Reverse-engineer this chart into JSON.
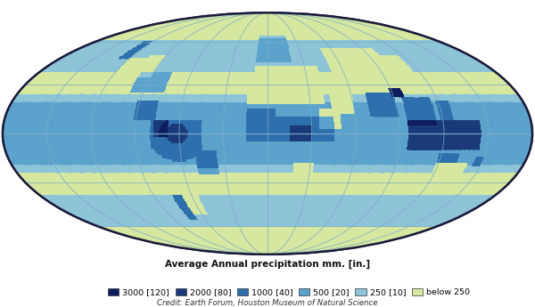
{
  "title": "Average Annual precipitation mm. [in.]",
  "credit": "Credit: Earth Forum, Houston Museum of Natural Science",
  "legend_entries": [
    {
      "label": "3000 [120]",
      "color": "#0d1d5e"
    },
    {
      "label": "2000 [80]",
      "color": "#1a3a7a"
    },
    {
      "label": "1000 [40]",
      "color": "#2e6fad"
    },
    {
      "label": "500 [20]",
      "color": "#5ba3cc"
    },
    {
      "label": "250 [10]",
      "color": "#8ec4d8"
    },
    {
      "label": "below 250",
      "color": "#d6e8a0"
    }
  ],
  "ocean_color": "#a8c8e0",
  "background_color": "#ffffff",
  "graticule_color": "#7aaac8",
  "border_color": "#1a1a3a",
  "fig_width": 6.0,
  "fig_height": 3.45
}
